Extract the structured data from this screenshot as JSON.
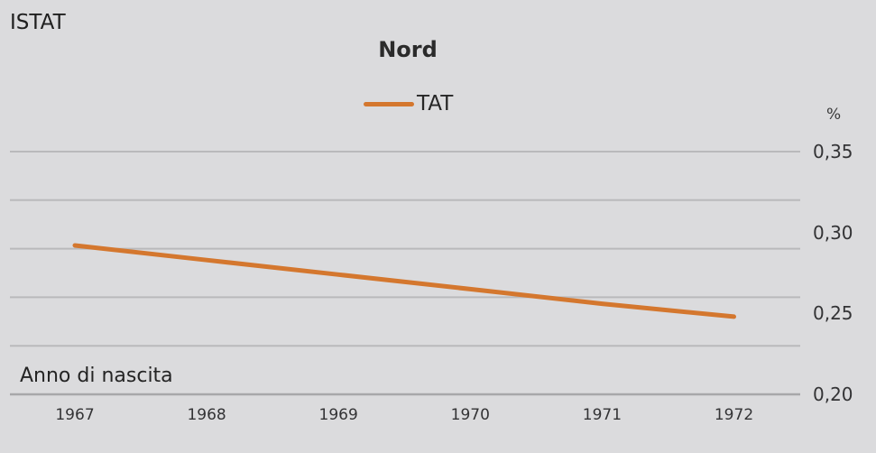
{
  "header": {
    "source": "ISTAT",
    "title": "Nord"
  },
  "legend": {
    "series_label": "TAT"
  },
  "x_axis": {
    "title": "Anno di nascita"
  },
  "y_axis": {
    "unit": "%",
    "side": "right",
    "tick_labels": [
      "0,35",
      "0,30",
      "0,25",
      "0,20"
    ],
    "tick_values": [
      0.35,
      0.3,
      0.25,
      0.2
    ]
  },
  "colors": {
    "background": "#dbdbdd",
    "series": "#d4772e",
    "gridline": "#b9b9bb",
    "gridline_bottom": "#a7a7a9",
    "text": "#262626"
  },
  "chart_data": {
    "type": "line",
    "title": "Nord",
    "xlabel": "Anno di nascita",
    "ylabel": "%",
    "categories": [
      "1967",
      "1968",
      "1969",
      "1970",
      "1971",
      "1972"
    ],
    "series": [
      {
        "name": "TAT",
        "color": "#d4772e",
        "values": [
          0.292,
          0.283,
          0.274,
          0.265,
          0.256,
          0.248
        ]
      }
    ],
    "ylim": [
      0.2,
      0.35
    ],
    "y_tick_interval": 0.05,
    "gridline_values": [
      0.35,
      0.32,
      0.29,
      0.26,
      0.23,
      0.2
    ],
    "grid": true,
    "legend_position": "top-center",
    "y_axis_side": "right"
  }
}
